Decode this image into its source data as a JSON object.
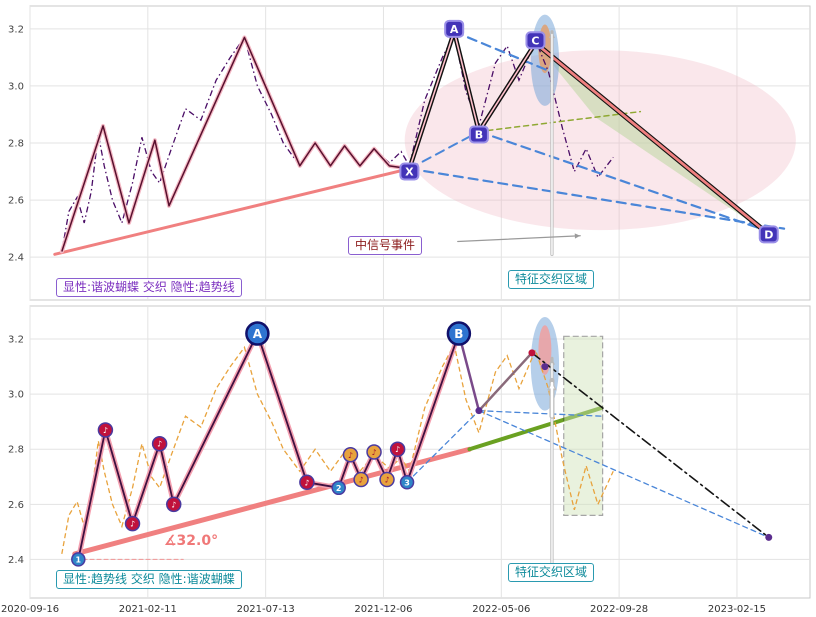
{
  "labels": {
    "top_legend": "显性:谐波蝴蝶 交织 隐性:趋势线",
    "top_signal": "中信号事件",
    "top_feature": "特征交织区域",
    "bottom_legend": "显性:趋势线 交织 隐性:谐波蝴蝶",
    "bottom_feature": "特征交织区域",
    "angle": "∡32.0°"
  },
  "colors": {
    "trend": "#f08080",
    "price_top": "#4a0d66",
    "price_bottom": "#e8a33d",
    "blue_dash": "#4a86d8",
    "olive_dash": "#8fa832",
    "green_line": "#6aa121",
    "marker_box": "#4334b8",
    "marker_box_border": "#9a8fe8",
    "big_circle": "#2e74d0",
    "big_circle_border": "#10106a",
    "num_circle": "#2f86c8",
    "red_circle": "#c0123c",
    "orange_circle": "#e8a33d",
    "ring": "#4a3aa0",
    "dot_purple": "#5b2d8e",
    "dot_red": "#c0123c",
    "teal": "#0d8a9a",
    "purple_label": "#7b2fbf"
  },
  "x_axis": {
    "labels": [
      "2020-09-16",
      "2021-02-11",
      "2021-07-13",
      "2021-12-06",
      "2022-05-06",
      "2022-09-28",
      "2023-02-15"
    ]
  },
  "chart_data": [
    {
      "type": "line",
      "name": "explicit-harmonic-butterfly-implicit-trendline",
      "ylim": [
        2.25,
        3.28
      ],
      "yticks": [
        2.4,
        2.6,
        2.8,
        3.0,
        3.2
      ],
      "ytick_labels": [
        "2.4",
        "2.6",
        "2.8",
        "3.0",
        "3.2"
      ],
      "xlim": [
        0,
        6.62
      ],
      "xticks": [
        0,
        1,
        2,
        3,
        4,
        5,
        6
      ],
      "under_lines": [
        {
          "x1": 0.21,
          "y1": 2.41,
          "x2": 3.22,
          "y2": 2.71,
          "color": "#f08080",
          "w": 3
        }
      ],
      "shapes": [
        {
          "kind": "ellipse",
          "cx": 4.84,
          "cy": 2.81,
          "rx": 1.66,
          "ry": 0.315,
          "fill": "#eeb3c0",
          "opacity": 0.32
        },
        {
          "kind": "polygon",
          "points": [
            [
              4.29,
              3.15
            ],
            [
              4.8,
              2.89
            ],
            [
              6.27,
              2.48
            ]
          ],
          "fill": "#b5d69a",
          "opacity": 0.5
        },
        {
          "kind": "ellipse",
          "cx": 4.37,
          "cy": 3.09,
          "rx": 0.12,
          "ry": 0.16,
          "fill": "#7aa7d8",
          "opacity": 0.55
        },
        {
          "kind": "ellipse",
          "cx": 4.37,
          "cy": 3.13,
          "rx": 0.055,
          "ry": 0.085,
          "fill": "#e0a070",
          "opacity": 0.85
        }
      ],
      "series": [
        {
          "name": "price",
          "color": "#4a0d66",
          "w": 1.3,
          "dash": "6 3 1.5 3",
          "x": [
            0.27,
            0.33,
            0.4,
            0.46,
            0.52,
            0.58,
            0.63,
            0.7,
            0.78,
            0.87,
            0.95,
            1.03,
            1.1,
            1.2,
            1.32,
            1.45,
            1.58,
            1.7,
            1.82,
            1.93,
            2.05,
            2.15,
            2.29,
            2.42,
            2.55,
            2.67,
            2.8,
            2.92,
            3.05,
            3.15,
            3.22,
            3.35,
            3.5,
            3.6,
            3.7,
            3.81,
            3.95,
            4.05,
            4.15,
            4.29,
            4.4,
            4.52,
            4.62,
            4.72,
            4.82,
            4.95
          ],
          "y": [
            2.42,
            2.56,
            2.61,
            2.52,
            2.63,
            2.83,
            2.72,
            2.6,
            2.52,
            2.66,
            2.82,
            2.7,
            2.66,
            2.78,
            2.92,
            2.88,
            3.02,
            3.1,
            3.17,
            3.0,
            2.9,
            2.8,
            2.72,
            2.8,
            2.72,
            2.79,
            2.72,
            2.78,
            2.73,
            2.77,
            2.72,
            2.95,
            3.1,
            3.18,
            2.98,
            2.86,
            3.08,
            3.14,
            3.02,
            3.16,
            3.05,
            2.85,
            2.7,
            2.78,
            2.68,
            2.75
          ]
        }
      ],
      "paths": [
        {
          "name": "zigzag",
          "halo": "#f4b8c4",
          "halo_w": 4,
          "color": "#58102e",
          "w": 1.5,
          "points": [
            [
              0.27,
              2.42
            ],
            [
              0.62,
              2.86
            ],
            [
              0.84,
              2.52
            ],
            [
              1.06,
              2.81
            ],
            [
              1.18,
              2.58
            ],
            [
              1.82,
              3.17
            ],
            [
              2.29,
              2.72
            ],
            [
              2.42,
              2.8
            ],
            [
              2.55,
              2.72
            ],
            [
              2.67,
              2.79
            ],
            [
              2.8,
              2.72
            ],
            [
              2.92,
              2.78
            ],
            [
              3.05,
              2.72
            ],
            [
              3.22,
              2.71
            ]
          ]
        }
      ],
      "lines": [
        {
          "x1": 3.22,
          "y1": 2.71,
          "x2": 3.81,
          "y2": 2.84,
          "color": "#4a86d8",
          "w": 2.0,
          "dash": "9 6"
        },
        {
          "x1": 3.6,
          "y1": 3.19,
          "x2": 4.42,
          "y2": 3.05,
          "color": "#4a86d8",
          "w": 2.2,
          "dash": "9 6"
        },
        {
          "x1": 3.22,
          "y1": 2.71,
          "x2": 6.4,
          "y2": 2.5,
          "color": "#4a86d8",
          "w": 2.2,
          "dash": "9 6"
        },
        {
          "x1": 3.81,
          "y1": 2.84,
          "x2": 6.27,
          "y2": 2.49,
          "color": "#4a86d8",
          "w": 2.2,
          "dash": "9 6"
        },
        {
          "x1": 3.81,
          "y1": 2.84,
          "x2": 5.18,
          "y2": 2.91,
          "color": "#8fa832",
          "w": 1.5,
          "dash": "5 4"
        },
        {
          "x1": 3.22,
          "y1": 2.71,
          "x2": 3.6,
          "y2": 3.19,
          "color": "#111111",
          "w": 4.5
        },
        {
          "x1": 3.22,
          "y1": 2.71,
          "x2": 3.6,
          "y2": 3.19,
          "color": "#ffc0cb",
          "w": 1.6
        },
        {
          "x1": 3.6,
          "y1": 3.19,
          "x2": 3.81,
          "y2": 2.84,
          "color": "#111111",
          "w": 4.5
        },
        {
          "x1": 3.6,
          "y1": 3.19,
          "x2": 3.81,
          "y2": 2.84,
          "color": "#ffc0cb",
          "w": 1.6
        },
        {
          "x1": 3.81,
          "y1": 2.84,
          "x2": 4.29,
          "y2": 3.15,
          "color": "#111111",
          "w": 4.5
        },
        {
          "x1": 3.81,
          "y1": 2.84,
          "x2": 4.29,
          "y2": 3.15,
          "color": "#ffc0cb",
          "w": 1.6
        },
        {
          "x1": 4.29,
          "y1": 3.15,
          "x2": 6.27,
          "y2": 2.48,
          "color": "#111111",
          "w": 5
        },
        {
          "x1": 4.29,
          "y1": 3.15,
          "x2": 6.27,
          "y2": 2.48,
          "color": "#f08080",
          "w": 2.8
        },
        {
          "x1": 4.43,
          "y1": 2.41,
          "x2": 4.43,
          "y2": 3.19,
          "color": "#b9b9b9",
          "w": 3.2,
          "arrow": true
        },
        {
          "x1": 4.43,
          "y1": 2.41,
          "x2": 4.43,
          "y2": 3.18,
          "color": "#f7f7f7",
          "w": 1.6
        },
        {
          "x1": 3.63,
          "y1": 2.455,
          "x2": 4.67,
          "y2": 2.475,
          "color": "#9a9a9a",
          "w": 1.2,
          "arrow": true
        }
      ],
      "markers": [
        {
          "style": "box",
          "label": "X",
          "t": 3.22,
          "v": 2.7
        },
        {
          "style": "box",
          "label": "A",
          "t": 3.6,
          "v": 3.2
        },
        {
          "style": "box",
          "label": "B",
          "t": 3.81,
          "v": 2.83
        },
        {
          "style": "box",
          "label": "C",
          "t": 4.29,
          "v": 3.16
        },
        {
          "style": "box",
          "label": "D",
          "t": 6.27,
          "v": 2.48
        }
      ]
    },
    {
      "type": "line",
      "name": "explicit-trendline-implicit-harmonic-butterfly",
      "ylim": [
        2.26,
        3.32
      ],
      "yticks": [
        2.4,
        2.6,
        2.8,
        3.0,
        3.2
      ],
      "ytick_labels": [
        "2.4",
        "2.6",
        "2.8",
        "3.0",
        "3.2"
      ],
      "xlim": [
        0,
        6.62
      ],
      "xticks": [
        0,
        1,
        2,
        3,
        4,
        5,
        6
      ],
      "angle_deg": 32.0,
      "under_lines": [
        {
          "x1": 0.38,
          "y1": 2.42,
          "x2": 3.73,
          "y2": 2.8,
          "color": "#f08080",
          "w": 5
        },
        {
          "x1": 3.73,
          "y1": 2.8,
          "x2": 4.85,
          "y2": 2.95,
          "color": "#6aa121",
          "w": 4
        },
        {
          "x1": 0.45,
          "y1": 2.4,
          "x2": 1.3,
          "y2": 2.4,
          "color": "#f0a0a0",
          "w": 1.2,
          "dash": "4 3"
        }
      ],
      "shapes": [
        {
          "kind": "rect",
          "x1": 4.53,
          "y1": 2.56,
          "x2": 4.86,
          "y2": 3.21,
          "fill": "#cfe3b8",
          "opacity": 0.45,
          "stroke": "#3a3a3a",
          "dash": "6 3",
          "w": 1.2
        },
        {
          "kind": "ellipse",
          "cx": 4.37,
          "cy": 3.11,
          "rx": 0.12,
          "ry": 0.17,
          "fill": "#7aa7d8",
          "opacity": 0.55
        },
        {
          "kind": "ellipse",
          "cx": 4.37,
          "cy": 3.16,
          "rx": 0.055,
          "ry": 0.09,
          "fill": "#f0a0a0",
          "opacity": 0.85
        }
      ],
      "series": [
        {
          "name": "price",
          "color": "#e8a33d",
          "w": 1.3,
          "dash": "5 3",
          "x": [
            0.27,
            0.33,
            0.4,
            0.46,
            0.52,
            0.58,
            0.63,
            0.7,
            0.78,
            0.87,
            0.95,
            1.03,
            1.1,
            1.2,
            1.32,
            1.45,
            1.58,
            1.7,
            1.82,
            1.93,
            2.05,
            2.15,
            2.29,
            2.42,
            2.55,
            2.67,
            2.8,
            2.92,
            3.05,
            3.15,
            3.22,
            3.35,
            3.5,
            3.6,
            3.7,
            3.81,
            3.95,
            4.05,
            4.15,
            4.29,
            4.4,
            4.52,
            4.62,
            4.72,
            4.82,
            4.95
          ],
          "y": [
            2.42,
            2.56,
            2.61,
            2.52,
            2.63,
            2.83,
            2.72,
            2.6,
            2.52,
            2.66,
            2.82,
            2.7,
            2.66,
            2.78,
            2.92,
            2.88,
            3.02,
            3.1,
            3.17,
            3.0,
            2.9,
            2.8,
            2.72,
            2.8,
            2.72,
            2.79,
            2.72,
            2.78,
            2.73,
            2.77,
            2.72,
            2.95,
            3.1,
            3.18,
            2.98,
            2.86,
            3.08,
            3.14,
            3.02,
            3.16,
            3.02,
            2.76,
            2.58,
            2.74,
            2.6,
            2.72
          ]
        }
      ],
      "paths": [
        {
          "name": "zigzag",
          "halo": "#f4a0b0",
          "halo_w": 5,
          "color": "#401040",
          "w": 1.8,
          "points": [
            [
              0.41,
              2.4
            ],
            [
              0.64,
              2.87
            ],
            [
              0.87,
              2.53
            ],
            [
              1.1,
              2.82
            ],
            [
              1.22,
              2.6
            ],
            [
              1.93,
              3.22
            ],
            [
              2.35,
              2.68
            ],
            [
              2.62,
              2.66
            ],
            [
              2.72,
              2.78
            ],
            [
              2.81,
              2.69
            ],
            [
              2.92,
              2.79
            ],
            [
              3.03,
              2.69
            ],
            [
              3.12,
              2.8
            ],
            [
              3.2,
              2.68
            ],
            [
              3.64,
              3.22
            ]
          ]
        }
      ],
      "lines": [
        {
          "x1": 3.2,
          "y1": 2.68,
          "x2": 3.81,
          "y2": 2.94,
          "color": "#4a86d8",
          "w": 1.3,
          "dash": "5 4"
        },
        {
          "x1": 3.81,
          "y1": 2.94,
          "x2": 6.27,
          "y2": 2.48,
          "color": "#4a86d8",
          "w": 1.3,
          "dash": "5 4"
        },
        {
          "x1": 3.81,
          "y1": 2.94,
          "x2": 4.85,
          "y2": 2.92,
          "color": "#4a86d8",
          "w": 1.3,
          "dash": "5 4"
        },
        {
          "x1": 3.64,
          "y1": 3.22,
          "x2": 3.81,
          "y2": 2.94,
          "color": "#7a4a8a",
          "w": 2.5
        },
        {
          "x1": 3.81,
          "y1": 2.94,
          "x2": 4.26,
          "y2": 3.15,
          "color": "#8a6a7a",
          "w": 2.5
        },
        {
          "x1": 4.26,
          "y1": 3.15,
          "x2": 6.27,
          "y2": 2.48,
          "color": "#151515",
          "w": 1.6,
          "dash": "10 4 2 4"
        },
        {
          "x1": 4.43,
          "y1": 2.37,
          "x2": 4.43,
          "y2": 3.13,
          "color": "#b9b9b9",
          "w": 3.2,
          "arrow": true
        },
        {
          "x1": 4.43,
          "y1": 2.37,
          "x2": 4.43,
          "y2": 3.11,
          "color": "#f7f7f7",
          "w": 1.6
        },
        {
          "x1": 4.43,
          "y1": 2.92,
          "x2": 4.43,
          "y2": 3.05,
          "color": "#bbbbbb",
          "w": 5,
          "arrow": true
        },
        {
          "x1": 4.43,
          "y1": 2.92,
          "x2": 4.43,
          "y2": 3.04,
          "color": "#ffffff",
          "w": 2.5,
          "arrow": true
        }
      ],
      "markers": [
        {
          "style": "num",
          "label": "1",
          "t": 0.41,
          "v": 2.4
        },
        {
          "style": "red",
          "label": "♪",
          "t": 0.64,
          "v": 2.87
        },
        {
          "style": "red",
          "label": "♪",
          "t": 0.87,
          "v": 2.53
        },
        {
          "style": "red",
          "label": "♪",
          "t": 1.1,
          "v": 2.82
        },
        {
          "style": "red",
          "label": "♪",
          "t": 1.22,
          "v": 2.6
        },
        {
          "style": "big",
          "label": "A",
          "t": 1.93,
          "v": 3.22
        },
        {
          "style": "red",
          "label": "♪",
          "t": 2.35,
          "v": 2.68
        },
        {
          "style": "num",
          "label": "2",
          "t": 2.62,
          "v": 2.66
        },
        {
          "style": "orange",
          "label": "♪",
          "t": 2.72,
          "v": 2.78
        },
        {
          "style": "orange",
          "label": "♪",
          "t": 2.81,
          "v": 2.69
        },
        {
          "style": "orange",
          "label": "♪",
          "t": 2.92,
          "v": 2.79
        },
        {
          "style": "orange",
          "label": "♪",
          "t": 3.03,
          "v": 2.69
        },
        {
          "style": "red",
          "label": "♪",
          "t": 3.12,
          "v": 2.8
        },
        {
          "style": "num",
          "label": "3",
          "t": 3.2,
          "v": 2.68
        },
        {
          "style": "big",
          "label": "B",
          "t": 3.64,
          "v": 3.22
        },
        {
          "style": "dot",
          "label": "",
          "t": 3.81,
          "v": 2.94,
          "color": "#5b2d8e"
        },
        {
          "style": "dot",
          "label": "",
          "t": 4.26,
          "v": 3.15,
          "color": "#c0123c"
        },
        {
          "style": "dot",
          "label": "",
          "t": 4.37,
          "v": 3.1,
          "color": "#5b2d8e"
        },
        {
          "style": "dot",
          "label": "",
          "t": 6.27,
          "v": 2.48,
          "color": "#5b2d8e"
        }
      ]
    }
  ]
}
